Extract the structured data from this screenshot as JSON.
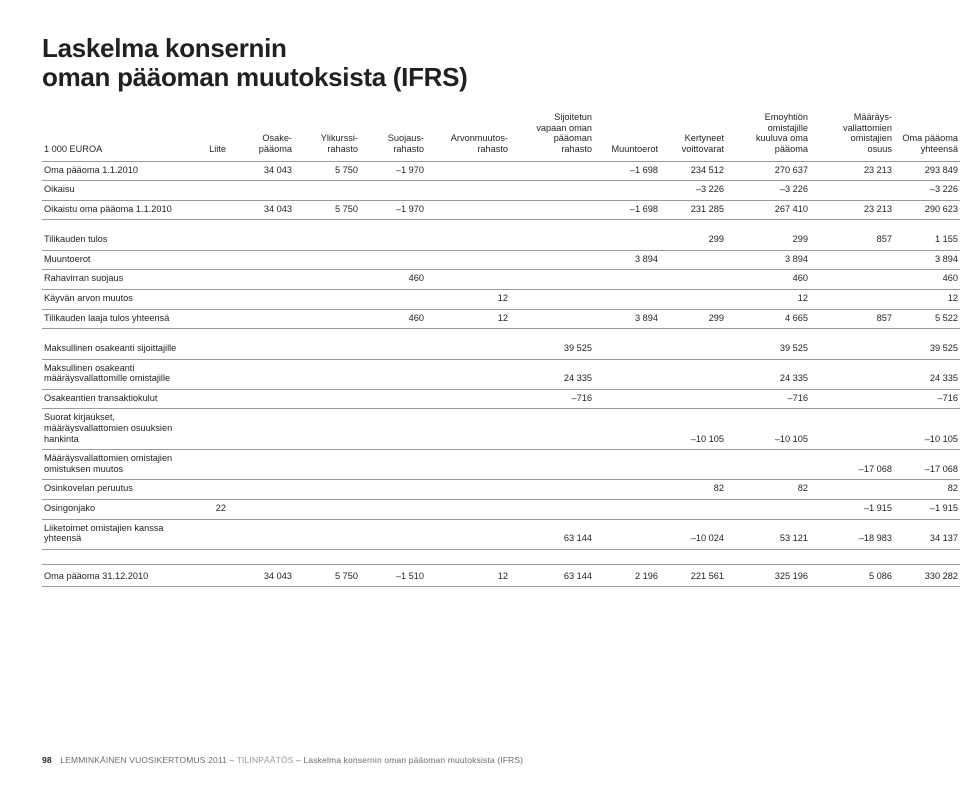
{
  "title_line1": "Laskelma konsernin",
  "title_line2": "oman pääoman muutoksista (IFRS)",
  "columns": {
    "c0": "1 000 EUROA",
    "c1": "Liite",
    "c2": "Osake-\npääoma",
    "c3": "Ylikurssi-\nrahasto",
    "c4": "Suojaus-\nrahasto",
    "c5": "Arvonmuutos-\nrahasto",
    "c6": "Sijoitetun\nvapaan oman\npääoman\nrahasto",
    "c7": "Muuntoerot",
    "c8": "Kertyneet\nvoittovarat",
    "c9": "Emoyhtiön\nomistajille\nkuuluva oma\npääoma",
    "c10": "Määräys-\nvallattomien\nomistajien\nosuus",
    "c11": "Oma pääoma\nyhteensä"
  },
  "rows": {
    "s1r1": {
      "label": "Oma pääoma 1.1.2010",
      "c2": "34 043",
      "c3": "5 750",
      "c4": "–1 970",
      "c7": "–1 698",
      "c8": "234 512",
      "c9": "270 637",
      "c10": "23 213",
      "c11": "293 849"
    },
    "s1r2": {
      "label": "Oikaisu",
      "c8": "–3 226",
      "c9": "–3 226",
      "c11": "–3 226"
    },
    "s1r3": {
      "label": "Oikaistu oma pääoma 1.1.2010",
      "c2": "34 043",
      "c3": "5 750",
      "c4": "–1 970",
      "c7": "–1 698",
      "c8": "231 285",
      "c9": "267 410",
      "c10": "23 213",
      "c11": "290 623"
    },
    "s2r1": {
      "label": "Tilikauden tulos",
      "c8": "299",
      "c9": "299",
      "c10": "857",
      "c11": "1 155"
    },
    "s2r2": {
      "label": "Muuntoerot",
      "c7": "3 894",
      "c9": "3 894",
      "c11": "3 894"
    },
    "s2r3": {
      "label": "Rahavirran suojaus",
      "c4": "460",
      "c9": "460",
      "c11": "460"
    },
    "s2r4": {
      "label": "Käyvän arvon muutos",
      "c5": "12",
      "c9": "12",
      "c11": "12"
    },
    "s2r5": {
      "label": "Tilikauden laaja tulos yhteensä",
      "c4": "460",
      "c5": "12",
      "c7": "3 894",
      "c8": "299",
      "c9": "4 665",
      "c10": "857",
      "c11": "5 522"
    },
    "s3r1": {
      "label": "Maksullinen osakeanti sijoittajille",
      "c6": "39 525",
      "c9": "39 525",
      "c11": "39 525"
    },
    "s3r2": {
      "label": "Maksullinen osakeanti\nmääräysvallattomille omistajille",
      "c6": "24 335",
      "c9": "24 335",
      "c11": "24 335"
    },
    "s3r3": {
      "label": "Osakeantien transaktiokulut",
      "c6": "–716",
      "c9": "–716",
      "c11": "–716"
    },
    "s3r4": {
      "label": "Suorat kirjaukset,\nmääräysvallattomien osuuksien\nhankinta",
      "c8": "–10 105",
      "c9": "–10 105",
      "c11": "–10 105"
    },
    "s3r5": {
      "label": "Määräysvallattomien omistajien\nomistuksen muutos",
      "c10": "–17 068",
      "c11": "–17 068"
    },
    "s3r6": {
      "label": "Osinkovelan peruutus",
      "c8": "82",
      "c9": "82",
      "c11": "82"
    },
    "s3r7": {
      "label": "Osingonjako",
      "c1": "22",
      "c10": "–1 915",
      "c11": "–1 915"
    },
    "s3r8": {
      "label": "Liiketoimet omistajien kanssa\nyhteensä",
      "c6": "63 144",
      "c8": "–10 024",
      "c9": "53 121",
      "c10": "–18 983",
      "c11": "34 137"
    },
    "final": {
      "label": "Oma pääoma 31.12.2010",
      "c2": "34 043",
      "c3": "5 750",
      "c4": "–1 510",
      "c5": "12",
      "c6": "63 144",
      "c7": "2 196",
      "c8": "221 561",
      "c9": "325 196",
      "c10": "5 086",
      "c11": "330 282"
    }
  },
  "footer": {
    "page": "98",
    "a": "LEMMINKÄINEN VUOSIKERTOMUS 2011 – ",
    "b": "TILINPÄÄTÖS",
    "c": " – Laskelma konsernin oman pääoman muutoksista (IFRS)"
  }
}
